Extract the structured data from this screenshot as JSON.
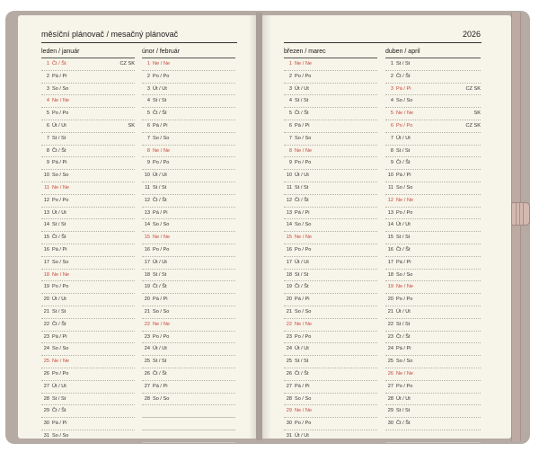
{
  "header": {
    "title": "měsíční plánovač / mesačný plánovač",
    "year": "2026"
  },
  "months": [
    {
      "name": "leden / január",
      "days": [
        {
          "n": "1",
          "d": "Čt / Št",
          "red": true,
          "note": "CZ SK"
        },
        {
          "n": "2",
          "d": "Pá / Pi"
        },
        {
          "n": "3",
          "d": "So / So"
        },
        {
          "n": "4",
          "d": "Ne / Ne",
          "red": true
        },
        {
          "n": "5",
          "d": "Po / Po"
        },
        {
          "n": "6",
          "d": "Út / Ut",
          "note": "SK"
        },
        {
          "n": "7",
          "d": "St / St"
        },
        {
          "n": "8",
          "d": "Čt / Št"
        },
        {
          "n": "9",
          "d": "Pá / Pi"
        },
        {
          "n": "10",
          "d": "So / So"
        },
        {
          "n": "11",
          "d": "Ne / Ne",
          "red": true
        },
        {
          "n": "12",
          "d": "Po / Po"
        },
        {
          "n": "13",
          "d": "Út / Ut"
        },
        {
          "n": "14",
          "d": "St / St"
        },
        {
          "n": "15",
          "d": "Čt / Št"
        },
        {
          "n": "16",
          "d": "Pá / Pi"
        },
        {
          "n": "17",
          "d": "So / So"
        },
        {
          "n": "18",
          "d": "Ne / Ne",
          "red": true
        },
        {
          "n": "19",
          "d": "Po / Po"
        },
        {
          "n": "20",
          "d": "Út / Ut"
        },
        {
          "n": "21",
          "d": "St / St"
        },
        {
          "n": "22",
          "d": "Čt / Št"
        },
        {
          "n": "23",
          "d": "Pá / Pi"
        },
        {
          "n": "24",
          "d": "So / So"
        },
        {
          "n": "25",
          "d": "Ne / Ne",
          "red": true
        },
        {
          "n": "26",
          "d": "Po / Po"
        },
        {
          "n": "27",
          "d": "Út / Ut"
        },
        {
          "n": "28",
          "d": "St / St"
        },
        {
          "n": "29",
          "d": "Čt / Št"
        },
        {
          "n": "30",
          "d": "Pá / Pi"
        },
        {
          "n": "31",
          "d": "So / So"
        }
      ]
    },
    {
      "name": "únor / február",
      "days": [
        {
          "n": "1",
          "d": "Ne / Ne",
          "red": true
        },
        {
          "n": "2",
          "d": "Po / Po"
        },
        {
          "n": "3",
          "d": "Út / Ut"
        },
        {
          "n": "4",
          "d": "St / St"
        },
        {
          "n": "5",
          "d": "Čt / Št"
        },
        {
          "n": "6",
          "d": "Pá / Pi"
        },
        {
          "n": "7",
          "d": "So / So"
        },
        {
          "n": "8",
          "d": "Ne / Ne",
          "red": true
        },
        {
          "n": "9",
          "d": "Po / Po"
        },
        {
          "n": "10",
          "d": "Út / Ut"
        },
        {
          "n": "11",
          "d": "St / St"
        },
        {
          "n": "12",
          "d": "Čt / Št"
        },
        {
          "n": "13",
          "d": "Pá / Pi"
        },
        {
          "n": "14",
          "d": "So / So"
        },
        {
          "n": "15",
          "d": "Ne / Ne",
          "red": true
        },
        {
          "n": "16",
          "d": "Po / Po"
        },
        {
          "n": "17",
          "d": "Út / Ut"
        },
        {
          "n": "18",
          "d": "St / St"
        },
        {
          "n": "19",
          "d": "Čt / Št"
        },
        {
          "n": "20",
          "d": "Pá / Pi"
        },
        {
          "n": "21",
          "d": "So / So"
        },
        {
          "n": "22",
          "d": "Ne / Ne",
          "red": true
        },
        {
          "n": "23",
          "d": "Po / Po"
        },
        {
          "n": "24",
          "d": "Út / Ut"
        },
        {
          "n": "25",
          "d": "St / St"
        },
        {
          "n": "26",
          "d": "Čt / Št"
        },
        {
          "n": "27",
          "d": "Pá / Pi"
        },
        {
          "n": "28",
          "d": "So / So"
        }
      ]
    },
    {
      "name": "březen / marec",
      "days": [
        {
          "n": "1",
          "d": "Ne / Ne",
          "red": true
        },
        {
          "n": "2",
          "d": "Po / Po"
        },
        {
          "n": "3",
          "d": "Út / Ut"
        },
        {
          "n": "4",
          "d": "St / St"
        },
        {
          "n": "5",
          "d": "Čt / Št"
        },
        {
          "n": "6",
          "d": "Pá / Pi"
        },
        {
          "n": "7",
          "d": "So / So"
        },
        {
          "n": "8",
          "d": "Ne / Ne",
          "red": true
        },
        {
          "n": "9",
          "d": "Po / Po"
        },
        {
          "n": "10",
          "d": "Út / Ut"
        },
        {
          "n": "11",
          "d": "St / St"
        },
        {
          "n": "12",
          "d": "Čt / Št"
        },
        {
          "n": "13",
          "d": "Pá / Pi"
        },
        {
          "n": "14",
          "d": "So / So"
        },
        {
          "n": "15",
          "d": "Ne / Ne",
          "red": true
        },
        {
          "n": "16",
          "d": "Po / Po"
        },
        {
          "n": "17",
          "d": "Út / Ut"
        },
        {
          "n": "18",
          "d": "St / St"
        },
        {
          "n": "19",
          "d": "Čt / Št"
        },
        {
          "n": "20",
          "d": "Pá / Pi"
        },
        {
          "n": "21",
          "d": "So / So"
        },
        {
          "n": "22",
          "d": "Ne / Ne",
          "red": true
        },
        {
          "n": "23",
          "d": "Po / Po"
        },
        {
          "n": "24",
          "d": "Út / Ut"
        },
        {
          "n": "25",
          "d": "St / St"
        },
        {
          "n": "26",
          "d": "Čt / Št"
        },
        {
          "n": "27",
          "d": "Pá / Pi"
        },
        {
          "n": "28",
          "d": "So / So"
        },
        {
          "n": "29",
          "d": "Ne / Ne",
          "red": true
        },
        {
          "n": "30",
          "d": "Po / Po"
        },
        {
          "n": "31",
          "d": "Út / Ut"
        }
      ]
    },
    {
      "name": "duben / april",
      "days": [
        {
          "n": "1",
          "d": "St / St"
        },
        {
          "n": "2",
          "d": "Čt / Št"
        },
        {
          "n": "3",
          "d": "Pá / Pi",
          "red": true,
          "note": "CZ SK"
        },
        {
          "n": "4",
          "d": "So / So"
        },
        {
          "n": "5",
          "d": "Ne / Ne",
          "red": true,
          "note": "SK"
        },
        {
          "n": "6",
          "d": "Po / Po",
          "red": true,
          "note": "CZ SK"
        },
        {
          "n": "7",
          "d": "Út / Ut"
        },
        {
          "n": "8",
          "d": "St / St"
        },
        {
          "n": "9",
          "d": "Čt / Št"
        },
        {
          "n": "10",
          "d": "Pá / Pi"
        },
        {
          "n": "11",
          "d": "So / So"
        },
        {
          "n": "12",
          "d": "Ne / Ne",
          "red": true
        },
        {
          "n": "13",
          "d": "Po / Po"
        },
        {
          "n": "14",
          "d": "Út / Ut"
        },
        {
          "n": "15",
          "d": "St / St"
        },
        {
          "n": "16",
          "d": "Čt / Št"
        },
        {
          "n": "17",
          "d": "Pá / Pi"
        },
        {
          "n": "18",
          "d": "So / So"
        },
        {
          "n": "19",
          "d": "Ne / Ne",
          "red": true
        },
        {
          "n": "20",
          "d": "Po / Po"
        },
        {
          "n": "21",
          "d": "Út / Ut"
        },
        {
          "n": "22",
          "d": "St / St"
        },
        {
          "n": "23",
          "d": "Čt / Št"
        },
        {
          "n": "24",
          "d": "Pá / Pi"
        },
        {
          "n": "25",
          "d": "So / So"
        },
        {
          "n": "26",
          "d": "Ne / Ne",
          "red": true
        },
        {
          "n": "27",
          "d": "Po / Po"
        },
        {
          "n": "28",
          "d": "Út / Ut"
        },
        {
          "n": "29",
          "d": "St / St"
        },
        {
          "n": "30",
          "d": "Čt / Št"
        }
      ]
    }
  ]
}
